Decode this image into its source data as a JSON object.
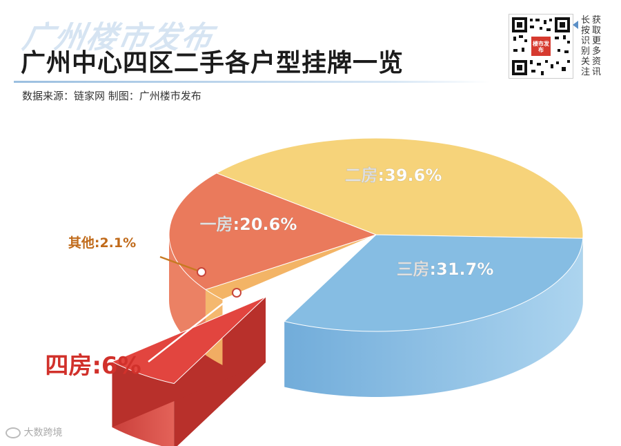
{
  "header": {
    "brand": "广州楼市发布",
    "title": "广州中心四区二手各户型挂牌一览",
    "source": "数据来源：链家网 制图：广州楼市发布"
  },
  "qr": {
    "center_text": "楼市发布",
    "side_text_left": "长按识别关注",
    "side_text_right": "获取更多资讯"
  },
  "footer": {
    "watermark": "大数跨境"
  },
  "colors": {
    "two_room": "#f6d37a",
    "three_room": "#86bde3",
    "one_room": "#ea7a5c",
    "other": "#f3b466",
    "four_room": "#e2453f"
  },
  "chart_data": {
    "type": "pie",
    "title": "广州中心四区二手各户型挂牌一览",
    "slices": [
      {
        "label": "二房",
        "value": 39.6,
        "display": "二房:39.6%"
      },
      {
        "label": "三房",
        "value": 31.7,
        "display": "三房:31.7%"
      },
      {
        "label": "四房",
        "value": 6,
        "display": "四房:6%"
      },
      {
        "label": "其他",
        "value": 2.1,
        "display": "其他:2.1%"
      },
      {
        "label": "一房",
        "value": 20.6,
        "display": "一房:20.6%"
      }
    ]
  }
}
